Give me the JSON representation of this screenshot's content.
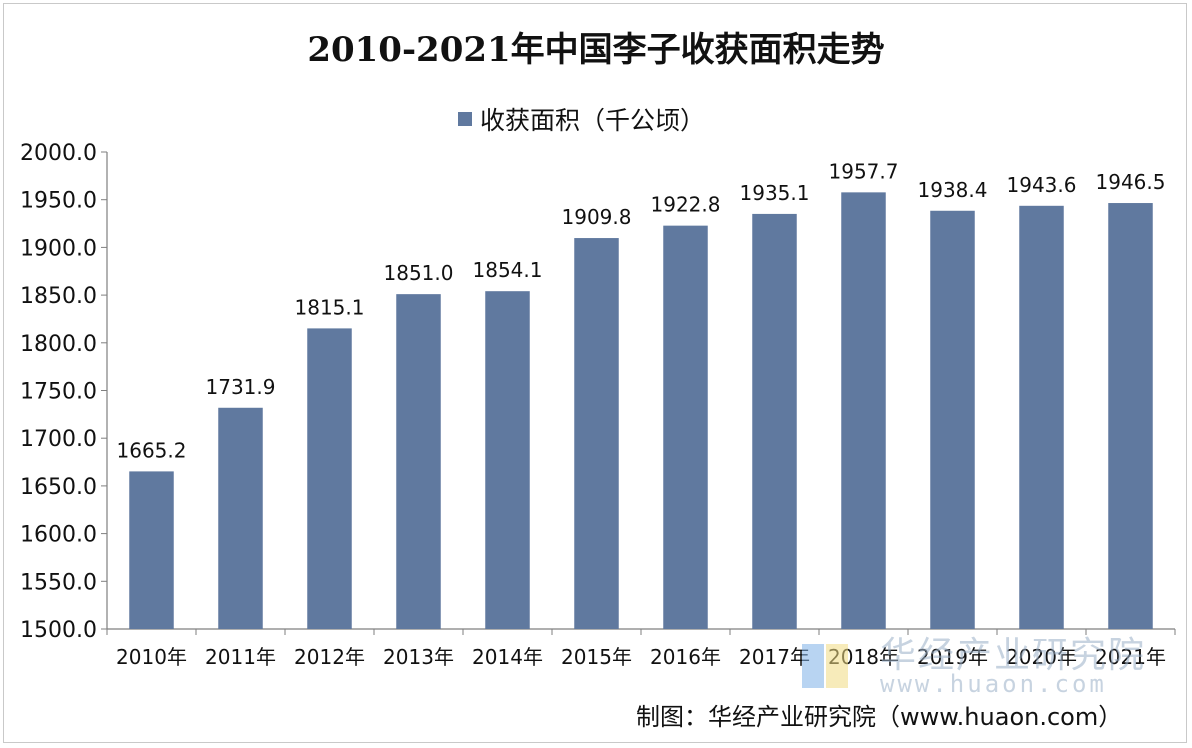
{
  "chart_data": {
    "type": "bar",
    "title": "2010-2021年中国李子收获面积走势",
    "categories": [
      "2010年",
      "2011年",
      "2012年",
      "2013年",
      "2014年",
      "2015年",
      "2016年",
      "2017年",
      "2018年",
      "2019年",
      "2020年",
      "2021年"
    ],
    "series": [
      {
        "name": "收获面积（千公顷）",
        "values": [
          1665.2,
          1731.9,
          1815.1,
          1851.0,
          1854.1,
          1909.8,
          1922.8,
          1935.1,
          1957.7,
          1938.4,
          1943.6,
          1946.5
        ],
        "labels": [
          "1665.2",
          "1731.9",
          "1815.1",
          "1851.0",
          "1854.1",
          "1909.8",
          "1922.8",
          "1935.1",
          "1957.7",
          "1938.4",
          "1943.6",
          "1946.5"
        ]
      }
    ],
    "ylim": [
      1500,
      2000
    ],
    "yticks": [
      "1500.0",
      "1550.0",
      "1600.0",
      "1650.0",
      "1700.0",
      "1750.0",
      "1800.0",
      "1850.0",
      "1900.0",
      "1950.0",
      "2000.0"
    ],
    "bar_color": "#60799f",
    "legend_position": "top-center",
    "grid": false
  },
  "watermark": {
    "text": "华经产业研究院",
    "url": "www.huaon.com"
  },
  "source": "制图：华经产业研究院（www.huaon.com）"
}
